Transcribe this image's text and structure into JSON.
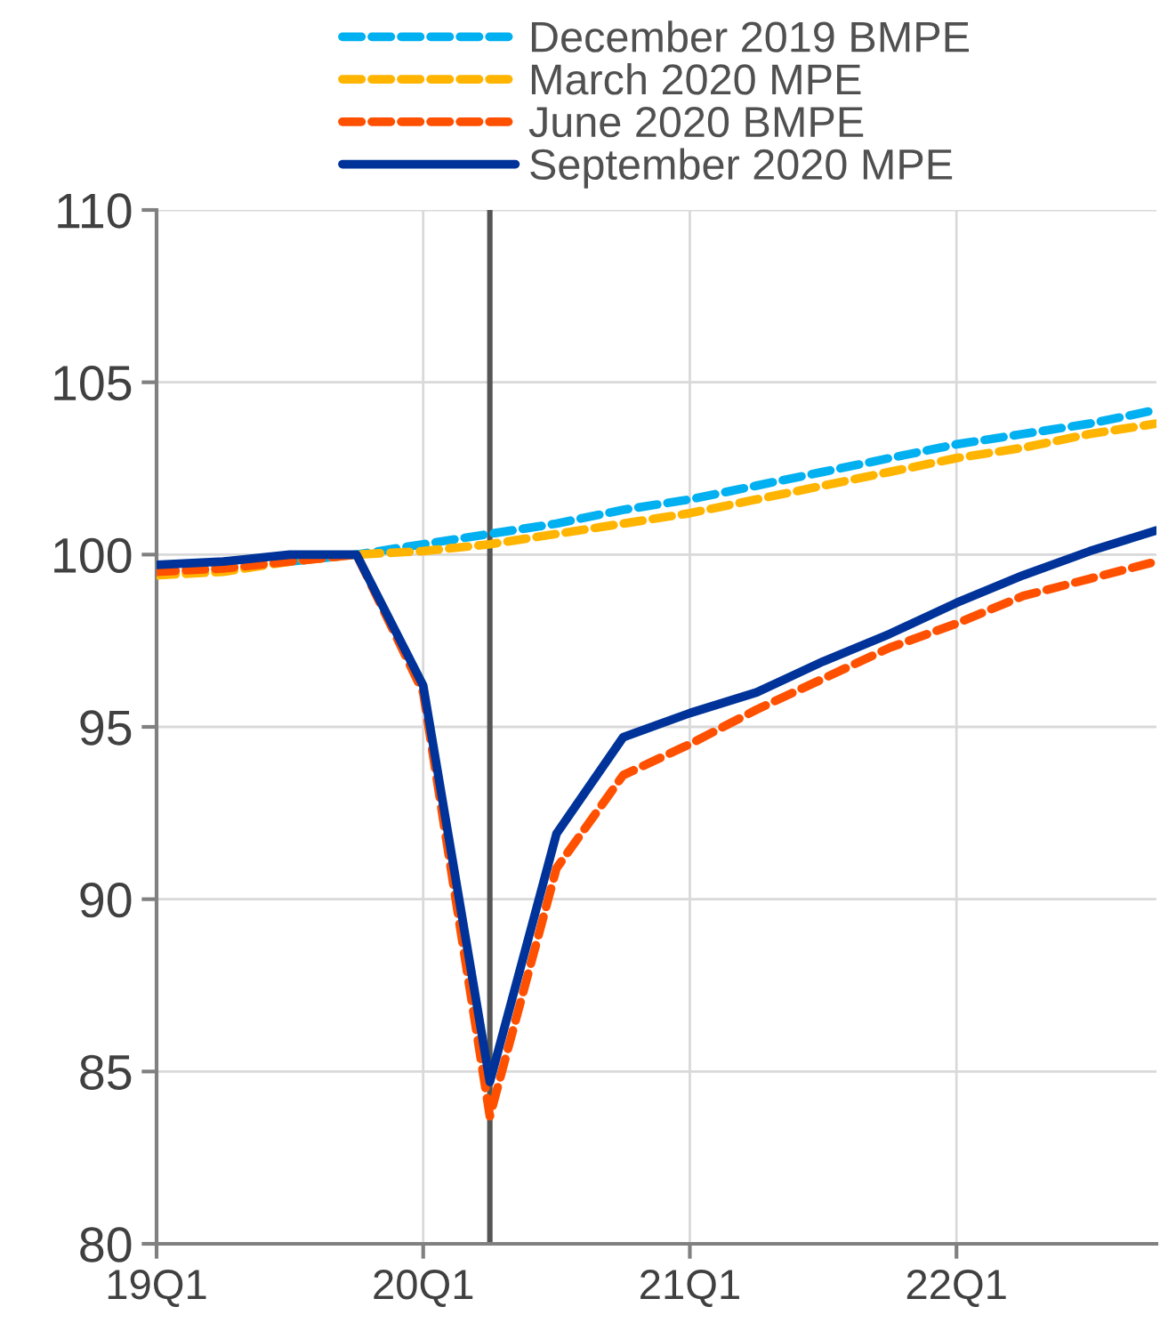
{
  "chart_data": {
    "type": "line",
    "categories": [
      "19Q1",
      null,
      null,
      null,
      "20Q1",
      null,
      null,
      null,
      "21Q1",
      null,
      null,
      null,
      "22Q1",
      null,
      null,
      null
    ],
    "ylim": [
      80,
      110
    ],
    "yticks": [
      80,
      85,
      90,
      95,
      100,
      105,
      110
    ],
    "grid": true,
    "legend": "top",
    "series": [
      {
        "name": "December 2019 BMPE",
        "color": "#00b0f0",
        "line_style": "dashed",
        "values": [
          null,
          null,
          99.8,
          100.0,
          100.3,
          100.6,
          100.9,
          101.3,
          101.6,
          102.0,
          102.4,
          102.8,
          103.2,
          103.5,
          103.8,
          104.2
        ]
      },
      {
        "name": "March 2020 MPE",
        "color": "#ffb400",
        "line_style": "dashed",
        "values": [
          99.4,
          99.5,
          99.8,
          100.0,
          100.1,
          100.3,
          100.6,
          100.9,
          101.2,
          101.6,
          102.0,
          102.4,
          102.8,
          103.1,
          103.5,
          103.8
        ]
      },
      {
        "name": "June 2020 BMPE",
        "color": "#ff5000",
        "line_style": "dashed",
        "values": [
          99.5,
          99.6,
          99.8,
          100.0,
          96.0,
          83.7,
          90.9,
          93.6,
          94.5,
          95.5,
          96.4,
          97.3,
          98.0,
          98.8,
          99.3,
          99.8
        ]
      },
      {
        "name": "September 2020 MPE",
        "color": "#003399",
        "line_style": "solid",
        "values": [
          99.7,
          99.8,
          100.0,
          100.0,
          96.2,
          84.7,
          91.9,
          94.7,
          95.4,
          96.0,
          96.9,
          97.7,
          98.6,
          99.4,
          100.1,
          100.7
        ]
      }
    ]
  }
}
